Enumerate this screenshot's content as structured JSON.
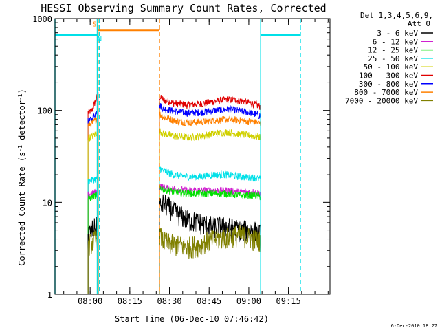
{
  "chart_data": {
    "type": "line",
    "title": "HESSI Observing Summary Count Rates, Corrected",
    "xlabel": "Start Time (06-Dec-10 07:46:42)",
    "ylabel": "Corrected Count Rate (s",
    "ylabel_sup1": "-1",
    "ylabel_mid": " detector",
    "ylabel_sup2": "-1",
    "ylabel_end": ")",
    "x_unit": "minutes since 07:46:42",
    "xlim": [
      0,
      104
    ],
    "ylim": [
      1,
      1000
    ],
    "yscale": "log",
    "grid": false,
    "x_ticks": [
      {
        "v": 13.3,
        "label": "08:00"
      },
      {
        "v": 28.3,
        "label": "08:15"
      },
      {
        "v": 43.3,
        "label": "08:30"
      },
      {
        "v": 58.3,
        "label": "08:45"
      },
      {
        "v": 73.3,
        "label": "09:00"
      },
      {
        "v": 88.3,
        "label": "09:15"
      }
    ],
    "y_ticks": [
      {
        "v": 1,
        "label": "1"
      },
      {
        "v": 10,
        "label": "10"
      },
      {
        "v": 100,
        "label": "100"
      },
      {
        "v": 1000,
        "label": "1000"
      }
    ],
    "legend": {
      "position": "right",
      "header": [
        "Det 1,3,4,5,6,9,",
        "Att 0"
      ],
      "entries": [
        {
          "label": "3 - 6 keV",
          "color": "#000000"
        },
        {
          "label": "6 - 12 keV",
          "color": "#d020d0"
        },
        {
          "label": "12 - 25 keV",
          "color": "#00e000"
        },
        {
          "label": "25 - 50 keV",
          "color": "#00e0e8"
        },
        {
          "label": "50 - 100 keV",
          "color": "#d0d000"
        },
        {
          "label": "100 - 300 keV",
          "color": "#e00000"
        },
        {
          "label": "300 - 800 keV",
          "color": "#0000ff"
        },
        {
          "label": "800 - 7000 keV",
          "color": "#ff8000"
        },
        {
          "label": "7000 - 20000 keV",
          "color": "#808000"
        }
      ]
    },
    "segments": [
      {
        "start": 12.5,
        "end": 16.3
      },
      {
        "start": 39.5,
        "end": 77.8
      }
    ],
    "series": [
      {
        "name": "100 - 300 keV",
        "color": "#e00000",
        "x": [
          12.5,
          14,
          15.5,
          16.3,
          39.5,
          41,
          45,
          50,
          55,
          60,
          65,
          70,
          75,
          77.8
        ],
        "y": [
          95,
          100,
          130,
          150,
          140,
          130,
          120,
          115,
          118,
          125,
          132,
          128,
          118,
          110
        ]
      },
      {
        "name": "300 - 800 keV",
        "color": "#0000ff",
        "x": [
          12.5,
          14,
          15.5,
          16.3,
          39.5,
          41,
          45,
          50,
          55,
          60,
          65,
          70,
          75,
          77.8
        ],
        "y": [
          76,
          80,
          95,
          110,
          115,
          105,
          98,
          94,
          95,
          100,
          103,
          99,
          93,
          87
        ]
      },
      {
        "name": "800 - 7000 keV",
        "color": "#ff8000",
        "x": [
          12.5,
          14,
          15.5,
          16.3,
          39.5,
          41,
          45,
          50,
          55,
          60,
          65,
          70,
          75,
          77.8
        ],
        "y": [
          70,
          72,
          80,
          85,
          92,
          85,
          78,
          74,
          75,
          78,
          80,
          78,
          75,
          72
        ]
      },
      {
        "name": "50 - 100 keV",
        "color": "#d0d000",
        "x": [
          12.5,
          14,
          15.5,
          16.3,
          39.5,
          41,
          45,
          50,
          55,
          60,
          65,
          70,
          75,
          77.8
        ],
        "y": [
          50,
          52,
          56,
          58,
          60,
          56,
          53,
          51,
          52,
          56,
          58,
          55,
          53,
          51
        ]
      },
      {
        "name": "25 - 50 keV",
        "color": "#00e0e8",
        "x": [
          12.5,
          14,
          15.5,
          16.3,
          39.5,
          41,
          45,
          50,
          55,
          60,
          65,
          70,
          75,
          77.8
        ],
        "y": [
          17,
          17.5,
          18,
          19,
          24,
          22,
          20,
          19,
          19,
          20,
          20,
          19,
          18.5,
          18
        ]
      },
      {
        "name": "6 - 12 keV",
        "color": "#d020d0",
        "x": [
          12.5,
          14,
          15.5,
          16.3,
          39.5,
          41,
          45,
          50,
          55,
          60,
          65,
          70,
          75,
          77.8
        ],
        "y": [
          12,
          12.5,
          13,
          13,
          15,
          14.5,
          14,
          13.5,
          13.5,
          13.5,
          13.5,
          13,
          13,
          12.5
        ]
      },
      {
        "name": "12 - 25 keV",
        "color": "#00e000",
        "x": [
          12.5,
          14,
          15.5,
          16.3,
          39.5,
          41,
          45,
          50,
          55,
          60,
          65,
          70,
          75,
          77.8
        ],
        "y": [
          11,
          11.5,
          12,
          12,
          14.5,
          14,
          13,
          12.5,
          12.5,
          12.5,
          12.5,
          12,
          12,
          11.5
        ]
      },
      {
        "name": "3 - 6 keV",
        "color": "#000000",
        "x": [
          12.5,
          14,
          15.5,
          16.3,
          39.5,
          41,
          45,
          50,
          55,
          60,
          65,
          70,
          75,
          77.8
        ],
        "y": [
          4.5,
          5,
          5.5,
          5.5,
          9,
          10,
          8,
          6.5,
          6,
          5.5,
          5.5,
          5,
          5,
          4.5
        ]
      },
      {
        "name": "7000 - 20000 keV",
        "color": "#808000",
        "x": [
          12.5,
          14,
          15.5,
          16.3,
          39.5,
          41,
          45,
          50,
          55,
          60,
          65,
          70,
          75,
          77.8
        ],
        "y": [
          3.5,
          3.7,
          4,
          4,
          4.5,
          3.8,
          3.5,
          3.3,
          3.5,
          4,
          4.2,
          4.5,
          4,
          3.8
        ]
      }
    ],
    "flags": [
      {
        "label": "S",
        "color": "#ff8000",
        "x_start": 16.3,
        "x_end": 39.5,
        "y": 750,
        "label_x": 15.0
      },
      {
        "label": "N",
        "color": "#00e0e8",
        "x_start": 0,
        "x_end": 16.3,
        "y": 660,
        "label_x": 16.9
      },
      {
        "label": "",
        "color": "#00e0e8",
        "x_start": 77.8,
        "x_end": 92.8,
        "y": 660,
        "label_x": null
      }
    ],
    "markers": [
      {
        "x": 0,
        "color": "#00e0e8",
        "style": "solid"
      },
      {
        "x": 16.0,
        "color": "#00e0e8",
        "style": "solid"
      },
      {
        "x": 16.3,
        "color": "#ff8000",
        "style": "dashed"
      },
      {
        "x": 16.8,
        "color": "#00e0e8",
        "style": "dashed"
      },
      {
        "x": 39.5,
        "color": "#ff8000",
        "style": "dashed"
      },
      {
        "x": 77.8,
        "color": "#00e0e8",
        "style": "solid"
      },
      {
        "x": 92.8,
        "color": "#00e0e8",
        "style": "dashed"
      }
    ]
  },
  "footer": {
    "date": "6-Dec-2010 18:27"
  }
}
